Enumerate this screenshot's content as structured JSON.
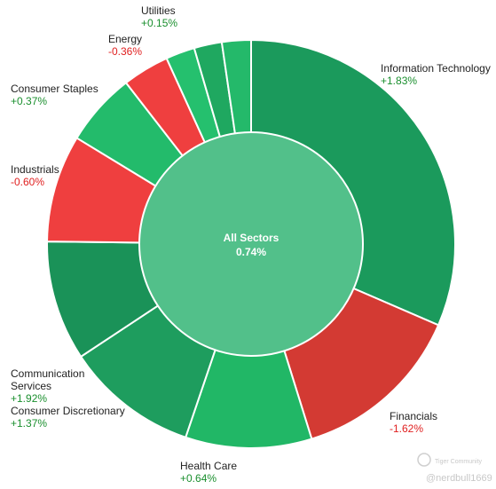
{
  "chart_data": {
    "type": "pie",
    "center": {
      "label": "All Sectors",
      "value": "0.74%",
      "color": "#52c08a"
    },
    "slices": [
      {
        "sector": "Information Technology",
        "weight": 31.5,
        "change": "+1.83%",
        "color": "#1b9a5c"
      },
      {
        "sector": "Financials",
        "weight": 13.7,
        "change": "-1.62%",
        "color": "#d33a33"
      },
      {
        "sector": "Health Care",
        "weight": 10.0,
        "change": "+0.64%",
        "color": "#21b766"
      },
      {
        "sector": "Consumer Discretionary",
        "weight": 10.5,
        "change": "+1.37%",
        "color": "#1e9d5e"
      },
      {
        "sector": "Communication Services",
        "weight": 9.5,
        "change": "+1.92%",
        "color": "#1a9258"
      },
      {
        "sector": "Industrials",
        "weight": 8.5,
        "change": "-0.60%",
        "color": "#ef3f3f"
      },
      {
        "sector": "Consumer Staples",
        "weight": 5.8,
        "change": "+0.37%",
        "color": "#23bb6b"
      },
      {
        "sector": "Energy",
        "weight": 3.7,
        "change": "-0.36%",
        "color": "#ef3f3f"
      },
      {
        "sector": "",
        "weight": 2.3,
        "change": "",
        "color": "#25c06e"
      },
      {
        "sector": "",
        "weight": 2.2,
        "change": "",
        "color": "#1fa860"
      },
      {
        "sector": "Utilities",
        "weight": 2.3,
        "change": "+0.15%",
        "color": "#24b96a"
      }
    ],
    "positive_color": "#1a8f2e",
    "negative_color": "#e02020"
  },
  "watermark": {
    "brand": "Tiger Community",
    "handle": "@nerdbull1669"
  }
}
